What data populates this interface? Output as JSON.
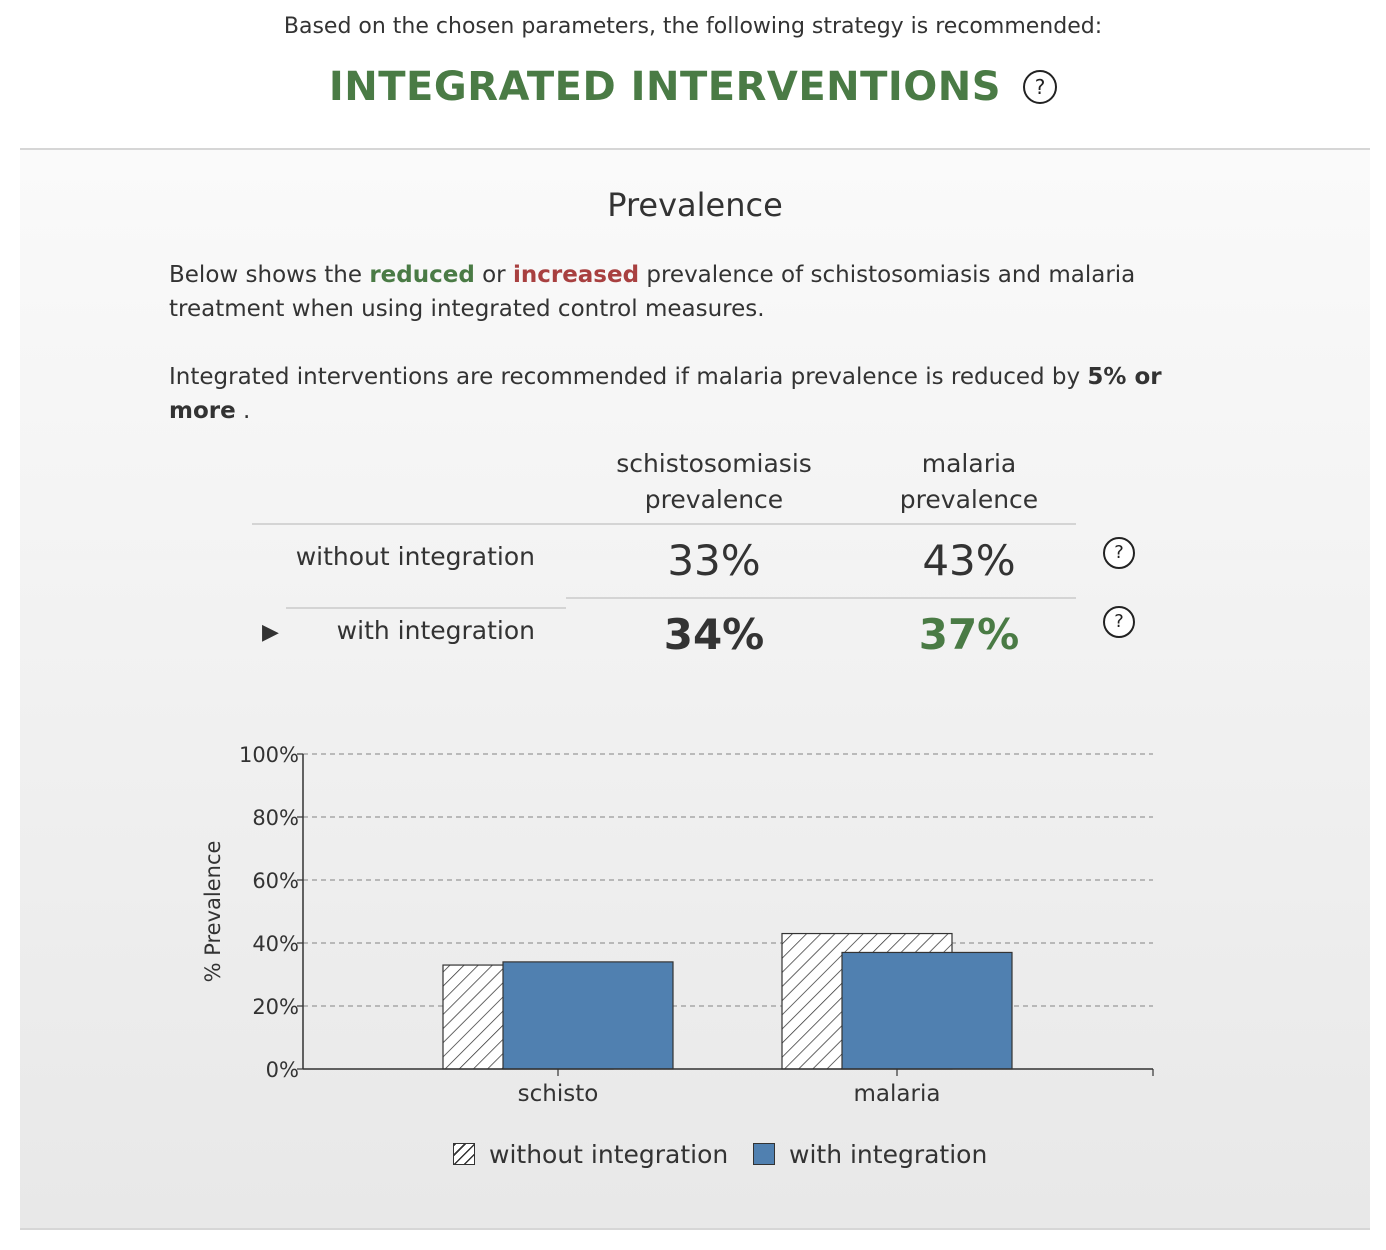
{
  "header": {
    "intro": "Based on the chosen parameters, the following strategy is recommended:",
    "strategy": "INTEGRATED INTERVENTIONS",
    "help_label": "?"
  },
  "panel": {
    "title": "Prevalence",
    "desc": {
      "part1": "Below shows the ",
      "reduced": "reduced",
      "part2": " or ",
      "increased": "increased",
      "part3": " prevalence of schistosomiasis and malaria treatment when using integrated control measures."
    },
    "rule": {
      "part1": "Integrated interventions are recommended if malaria prevalence is reduced by ",
      "threshold": "5% or more",
      "part2": " ."
    }
  },
  "table": {
    "columns": [
      {
        "line1": "schistosomiasis",
        "line2": "prevalence"
      },
      {
        "line1": "malaria",
        "line2": "prevalence"
      }
    ],
    "rows": [
      {
        "label": "without integration",
        "values": [
          "33%",
          "43%"
        ],
        "help": "?"
      },
      {
        "label": "with integration",
        "values": [
          "34%",
          "37%"
        ],
        "help": "?",
        "marker": "▶"
      }
    ]
  },
  "chart_data": {
    "type": "bar",
    "categories": [
      "schisto",
      "malaria"
    ],
    "series": [
      {
        "name": "without integration",
        "values": [
          33,
          43
        ],
        "pattern": "hatch"
      },
      {
        "name": "with integration",
        "values": [
          34,
          37
        ],
        "color": "#5080b0"
      }
    ],
    "ylabel": "% Prevalence",
    "ylim": [
      0,
      100
    ],
    "yticks": [
      "0%",
      "20%",
      "40%",
      "60%",
      "80%",
      "100%"
    ],
    "grid": true,
    "legend": "bottom"
  },
  "colors": {
    "accent_green": "#4a7b45",
    "accent_red": "#a84040",
    "bar_blue": "#5080b0"
  }
}
